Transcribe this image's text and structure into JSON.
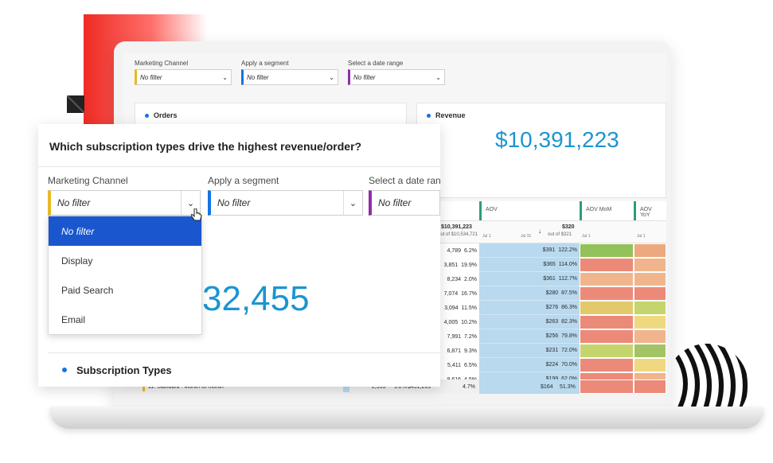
{
  "bg_dashboard": {
    "filters": [
      {
        "label": "Marketing Channel",
        "value": "No filter",
        "accent": "#e8b923"
      },
      {
        "label": "Apply a segment",
        "value": "No filter",
        "accent": "#1473e6"
      },
      {
        "label": "Select a date range",
        "value": "No filter",
        "accent": "#8e2fa8"
      }
    ],
    "orders_card": {
      "title": "Orders"
    },
    "revenue_card": {
      "title": "Revenue",
      "value": "$10,391,223"
    },
    "table": {
      "columns": [
        {
          "label": "AOV",
          "accent": "#2d9d78"
        },
        {
          "label": "AOV MoM",
          "accent": "#2d9d78"
        },
        {
          "label": "AOV YoY",
          "accent": "#2d9d78"
        }
      ],
      "revenue_total": "$10,391,223",
      "revenue_total_sub": "out of $10,534,721",
      "aov_total": "$320",
      "aov_total_sub": "out of $321",
      "aov_tick_left": "Jul 1",
      "aov_tick_right": "Jul 31",
      "mom_tick": "Jul 1",
      "yoy_tick": "Jul 1",
      "sort_arrow": "↓",
      "rows": [
        {
          "revenue": "4,789",
          "rev_pct": "6.2%",
          "aov": "$391",
          "aov_pct": "122.2%",
          "mom": "#93c15a",
          "yoy": "#eda97e"
        },
        {
          "revenue": "3,851",
          "rev_pct": "19.9%",
          "aov": "$365",
          "aov_pct": "114.0%",
          "mom": "#ec8a79",
          "yoy": "#f0b58c"
        },
        {
          "revenue": "8,234",
          "rev_pct": "2.0%",
          "aov": "$361",
          "aov_pct": "112.7%",
          "mom": "#f0b58c",
          "yoy": "#f0b58c"
        },
        {
          "revenue": "7,074",
          "rev_pct": "16.7%",
          "aov": "$280",
          "aov_pct": "87.5%",
          "mom": "#ec8a79",
          "yoy": "#ec8a79"
        },
        {
          "revenue": "3,094",
          "rev_pct": "11.5%",
          "aov": "$276",
          "aov_pct": "86.3%",
          "mom": "#e2c96b",
          "yoy": "#c5d56e"
        },
        {
          "revenue": "4,005",
          "rev_pct": "10.2%",
          "aov": "$263",
          "aov_pct": "82.3%",
          "mom": "#ec8a79",
          "yoy": "#efd880"
        },
        {
          "revenue": "7,991",
          "rev_pct": "7.2%",
          "aov": "$256",
          "aov_pct": "79.8%",
          "mom": "#ec8a79",
          "yoy": "#f0b58c"
        },
        {
          "revenue": "6,871",
          "rev_pct": "9.3%",
          "aov": "$231",
          "aov_pct": "72.0%",
          "mom": "#c5d56e",
          "yoy": "#a2c465"
        },
        {
          "revenue": "5,411",
          "rev_pct": "6.5%",
          "aov": "$224",
          "aov_pct": "70.0%",
          "mom": "#ec8a79",
          "yoy": "#efd880"
        },
        {
          "revenue": "9,616",
          "rev_pct": "4.5%",
          "aov": "$199",
          "aov_pct": "62.0%",
          "mom": "#ec8a79",
          "yoy": "#f0b58c"
        },
        {
          "revenue": "$491,269",
          "rev_pct": "4.7%",
          "aov": "$164",
          "aov_pct": "51.3%",
          "mom": "#ec8a79",
          "yoy": "#ec8a79"
        }
      ],
      "last_row": {
        "name": "11.  Standard : Month-to-month",
        "orders": "2,993",
        "orders_pct": "9.2%"
      }
    }
  },
  "panel": {
    "question": "Which subscription types drive the highest revenue/order?",
    "filters": [
      {
        "label": "Marketing Channel",
        "value": "No filter",
        "accent": "#e8b923"
      },
      {
        "label": "Apply a segment",
        "value": "No filter",
        "accent": "#1473e6"
      },
      {
        "label": "Select a date ran",
        "value": "No filter",
        "accent": "#8e2fa8"
      }
    ],
    "dropdown_options": [
      {
        "label": "No filter",
        "selected": true
      },
      {
        "label": "Display",
        "selected": false
      },
      {
        "label": "Paid Search",
        "selected": false
      },
      {
        "label": "Email",
        "selected": false
      }
    ],
    "big_number": "32,455",
    "subscription_card_title": "Subscription Types"
  },
  "icons": {
    "chevron": "chevron-down-icon",
    "dot": "status-dot-icon",
    "cursor": "hand-cursor-icon"
  },
  "colors": {
    "accent_blue": "#1473e6",
    "value_blue": "#1b95d1",
    "dropdown_selected": "#1a57cf",
    "brand_red": "#ee2b24"
  }
}
